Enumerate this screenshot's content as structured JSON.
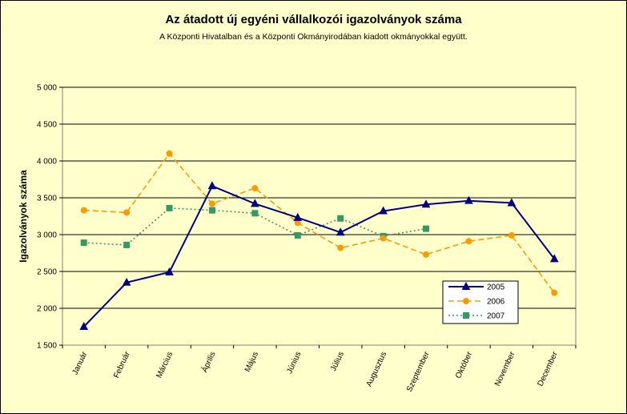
{
  "chart_data": {
    "type": "line",
    "title": "Az átadott új egyéni vállalkozói  igazolványok száma",
    "subtitle": "A Központi Hivatalban és a Központi Okmányirodában kiadott okmányokkal együtt.",
    "ylabel": "Igazolványok száma",
    "xlabel": "",
    "ylim": [
      1500,
      5000
    ],
    "yticks": [
      1500,
      2000,
      2500,
      3000,
      3500,
      4000,
      4500,
      5000
    ],
    "ytick_labels": [
      "1 500",
      "2 000",
      "2 500",
      "3 000",
      "3 500",
      "4 000",
      "4 500",
      "5 000"
    ],
    "categories": [
      "Január",
      "Február",
      "Március",
      "Április",
      "Május",
      "Június",
      "Július",
      "Augusztus",
      "Szeptember",
      "Október",
      "November",
      "December"
    ],
    "grid": true,
    "legend_position": "bottom-right",
    "series": [
      {
        "name": "2005",
        "color": "#000080",
        "dash": "solid",
        "marker": "triangle",
        "values": [
          1750,
          2350,
          2490,
          3660,
          3420,
          3230,
          3030,
          3320,
          3410,
          3460,
          3430,
          2670
        ]
      },
      {
        "name": "2006",
        "color": "#ff9900",
        "dash": "dashed",
        "marker": "circle",
        "values": [
          3330,
          3300,
          4100,
          3420,
          3630,
          3160,
          2820,
          2950,
          2730,
          2910,
          2990,
          2210
        ]
      },
      {
        "name": "2007",
        "color": "#339966",
        "dash": "dotted",
        "marker": "square",
        "values": [
          2890,
          2860,
          3360,
          3330,
          3290,
          2990,
          3220,
          2980,
          3080,
          null,
          null,
          null
        ]
      }
    ]
  }
}
